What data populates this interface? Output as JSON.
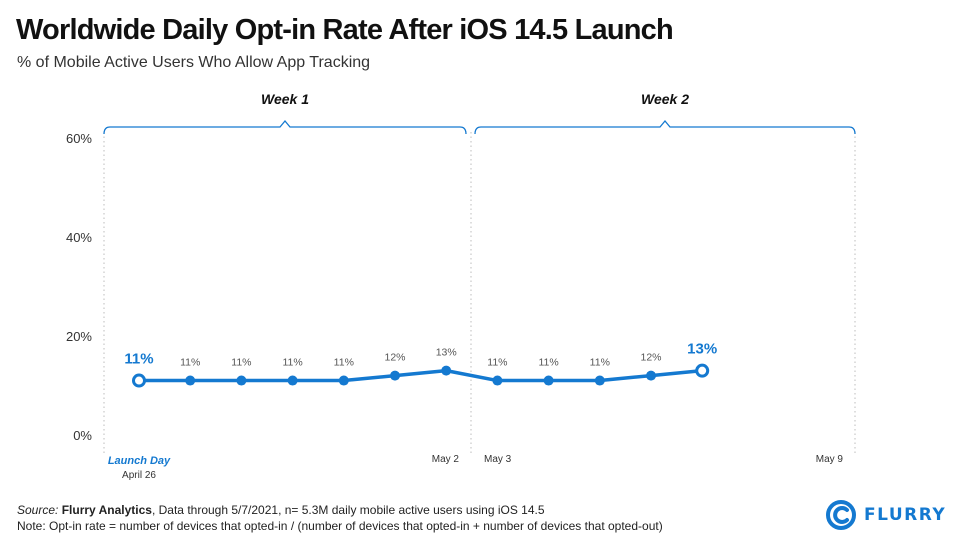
{
  "title": "Worldwide Daily Opt-in Rate After iOS 14.5 Launch",
  "subtitle": "% of Mobile Active Users Who Allow App Tracking",
  "chart_data": {
    "type": "line",
    "ylim": [
      0,
      60
    ],
    "yticks": [
      0,
      20,
      40,
      60
    ],
    "ytick_labels": [
      "0%",
      "20%",
      "40%",
      "60%"
    ],
    "grid": false,
    "series": [
      {
        "values": [
          11,
          11,
          11,
          11,
          11,
          12,
          13,
          11,
          11,
          11,
          12,
          13
        ],
        "labels": [
          "11%",
          "11%",
          "11%",
          "11%",
          "11%",
          "12%",
          "13%",
          "11%",
          "11%",
          "11%",
          "12%",
          "13%"
        ]
      }
    ],
    "x_labels": [
      {
        "index": 0,
        "text": "Launch Day",
        "sub": "April 26"
      },
      {
        "index": 6,
        "text": "May 2"
      },
      {
        "index": 7,
        "text": "May 3"
      },
      {
        "index": 13,
        "text": "May 9"
      }
    ],
    "week_labels": [
      "Week 1",
      "Week 2"
    ],
    "color": "#1479d0"
  },
  "footer": {
    "source_label": "Source:",
    "source_name": "Flurry Analytics",
    "source_text": ", Data through 5/7/2021, n= 5.3M daily mobile active users using iOS 14.5",
    "note": "Note: Opt-in rate = number of devices that opted-in / (number of devices that opted-in + number of devices that opted-out)"
  },
  "logo": {
    "text": "FLURRY",
    "icon": "flurry-logo-icon"
  }
}
